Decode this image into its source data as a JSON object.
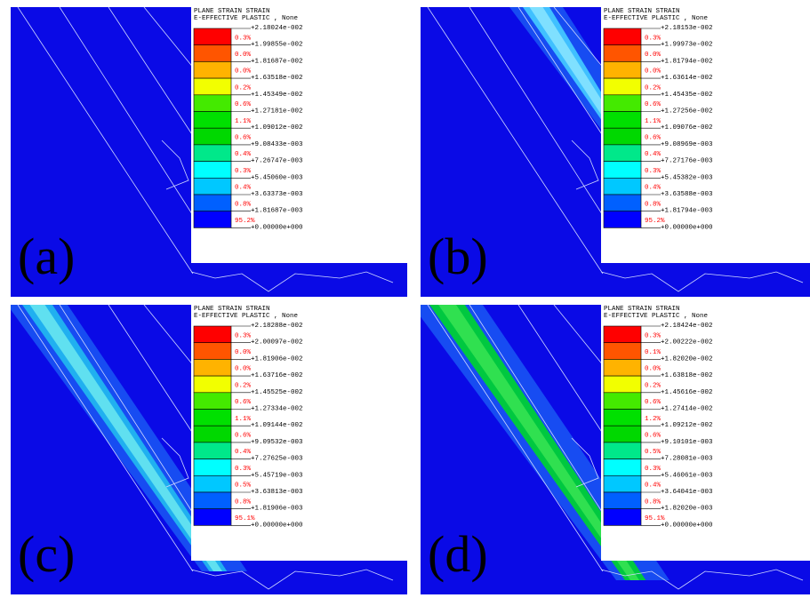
{
  "panels": [
    {
      "label": "(a)",
      "legend": {
        "title": [
          "PLANE STRAIN STRAIN",
          "E-EFFECTIVE PLASTIC , None"
        ],
        "bounds": [
          "+2.18024e-002",
          "+1.99855e-002",
          "+1.81687e-002",
          "+1.63518e-002",
          "+1.45349e-002",
          "+1.27181e-002",
          "+1.09012e-002",
          "+9.08433e-003",
          "+7.26747e-003",
          "+5.45060e-003",
          "+3.63373e-003",
          "+1.81687e-003",
          "+0.00000e+000"
        ],
        "percents": [
          "0.3%",
          "0.0%",
          "0.0%",
          "0.2%",
          "0.6%",
          "1.1%",
          "0.6%",
          "0.4%",
          "0.3%",
          "0.4%",
          "0.8%",
          "95.2%"
        ]
      }
    },
    {
      "label": "(b)",
      "legend": {
        "title": [
          "PLANE STRAIN STRAIN",
          "E-EFFECTIVE PLASTIC , None"
        ],
        "bounds": [
          "+2.18153e-002",
          "+1.99973e-002",
          "+1.81794e-002",
          "+1.63614e-002",
          "+1.45435e-002",
          "+1.27256e-002",
          "+1.09076e-002",
          "+9.08969e-003",
          "+7.27176e-003",
          "+5.45382e-003",
          "+3.63588e-003",
          "+1.81794e-003",
          "+0.00000e+000"
        ],
        "percents": [
          "0.3%",
          "0.0%",
          "0.0%",
          "0.2%",
          "0.6%",
          "1.1%",
          "0.6%",
          "0.4%",
          "0.3%",
          "0.4%",
          "0.8%",
          "95.2%"
        ]
      }
    },
    {
      "label": "(c)",
      "legend": {
        "title": [
          "PLANE STRAIN STRAIN",
          "E-EFFECTIVE PLASTIC , None"
        ],
        "bounds": [
          "+2.18288e-002",
          "+2.00097e-002",
          "+1.81906e-002",
          "+1.63716e-002",
          "+1.45525e-002",
          "+1.27334e-002",
          "+1.09144e-002",
          "+9.09532e-003",
          "+7.27625e-003",
          "+5.45719e-003",
          "+3.63813e-003",
          "+1.81906e-003",
          "+0.00000e+000"
        ],
        "percents": [
          "0.3%",
          "0.0%",
          "0.0%",
          "0.2%",
          "0.6%",
          "1.1%",
          "0.6%",
          "0.4%",
          "0.3%",
          "0.5%",
          "0.8%",
          "95.1%"
        ]
      }
    },
    {
      "label": "(d)",
      "legend": {
        "title": [
          "PLANE STRAIN STRAIN",
          "E-EFFECTIVE PLASTIC , None"
        ],
        "bounds": [
          "+2.18424e-002",
          "+2.00222e-002",
          "+1.82020e-002",
          "+1.63818e-002",
          "+1.45616e-002",
          "+1.27414e-002",
          "+1.09212e-002",
          "+9.10101e-003",
          "+7.28081e-003",
          "+5.46061e-003",
          "+3.64041e-003",
          "+1.82020e-003",
          "+0.00000e+000"
        ],
        "percents": [
          "0.3%",
          "0.1%",
          "0.0%",
          "0.2%",
          "0.6%",
          "1.2%",
          "0.6%",
          "0.5%",
          "0.3%",
          "0.4%",
          "0.8%",
          "95.1%"
        ]
      }
    }
  ]
}
